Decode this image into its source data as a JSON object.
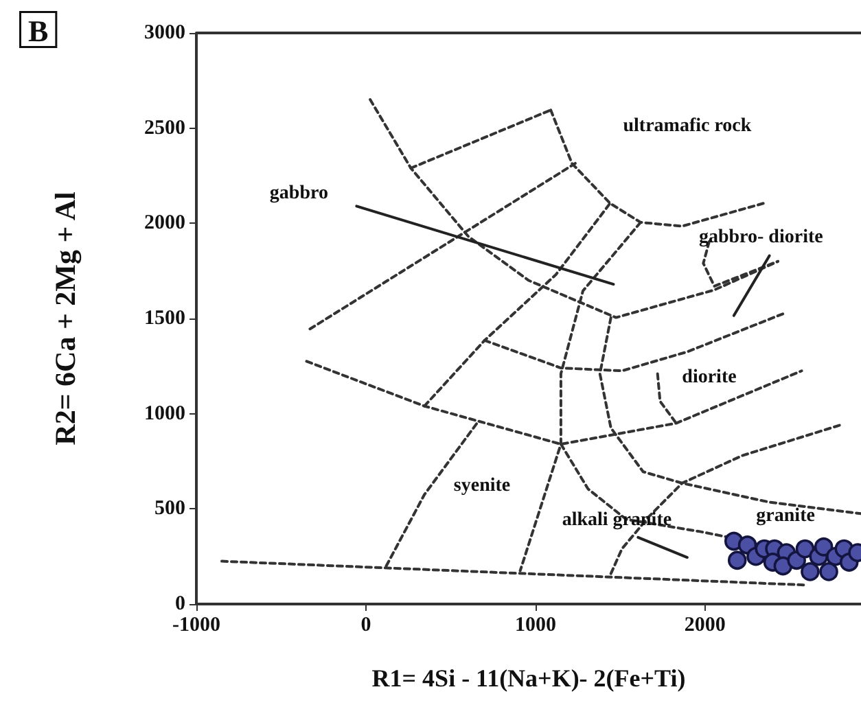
{
  "chart_data": {
    "type": "scatter",
    "xlabel": "R1= 4Si - 11(Na+K)- 2(Fe+Ti)",
    "ylabel": "R2= 6Ca + 2Mg + Al",
    "xlim": [
      -1000,
      2920
    ],
    "xticks": [
      -1000,
      0,
      1000,
      2000
    ],
    "ylim": [
      0,
      3000
    ],
    "yticks": [
      0,
      500,
      1000,
      1500,
      2000,
      2500,
      3000
    ],
    "marker": "circle",
    "annotations": [
      "B",
      "ultramafic rock",
      "gabbro",
      "gabbro- diorite",
      "diorite",
      "syenite",
      "alkali granite",
      "granite"
    ],
    "series": [
      {
        "type": "line",
        "line_style": "dashed",
        "marker": "none",
        "color": "#333333",
        "x": [
          -850,
          2590
        ],
        "values": [
          225,
          100
        ]
      },
      {
        "type": "line",
        "line_style": "dashed",
        "marker": "none",
        "color": "#333333",
        "x": [
          -350,
          345,
          1150,
          1830,
          2570
        ],
        "values": [
          1275,
          1040,
          840,
          950,
          1225
        ]
      },
      {
        "type": "line",
        "line_style": "dashed",
        "marker": "none",
        "color": "#333333",
        "x": [
          25,
          265,
          605,
          960,
          1475,
          2055,
          2430
        ],
        "values": [
          2650,
          2290,
          1930,
          1700,
          1505,
          1650,
          1800
        ]
      },
      {
        "type": "line",
        "line_style": "dashed",
        "marker": "none",
        "color": "#333333",
        "x": [
          -330,
          1235
        ],
        "values": [
          1445,
          2315
        ]
      },
      {
        "type": "line",
        "line_style": "dashed",
        "marker": "none",
        "color": "#333333",
        "x": [
          265,
          1090
        ],
        "values": [
          2290,
          2595
        ]
      },
      {
        "type": "line",
        "line_style": "dashed",
        "marker": "none",
        "color": "#333333",
        "x": [
          1090,
          1215,
          1440,
          1620,
          1865,
          2345
        ],
        "values": [
          2595,
          2315,
          2105,
          2005,
          1985,
          2105
        ]
      },
      {
        "type": "line",
        "line_style": "dashed",
        "marker": "none",
        "color": "#333333",
        "x": [
          345,
          700,
          1120,
          1440
        ],
        "values": [
          1040,
          1385,
          1730,
          2105
        ]
      },
      {
        "type": "line",
        "line_style": "dashed",
        "marker": "none",
        "color": "#333333",
        "x": [
          700,
          1150,
          1510,
          1895,
          2475
        ],
        "values": [
          1385,
          1240,
          1225,
          1325,
          1530
        ]
      },
      {
        "type": "line",
        "line_style": "dashed",
        "marker": "none",
        "color": "#333333",
        "x": [
          1620,
          1280,
          1150,
          1150,
          910
        ],
        "values": [
          2005,
          1645,
          1210,
          840,
          175
        ]
      },
      {
        "type": "line",
        "line_style": "dashed",
        "marker": "none",
        "color": "#333333",
        "x": [
          1150,
          1310,
          1535,
          1975,
          2170
        ],
        "values": [
          840,
          605,
          445,
          380,
          345
        ]
      },
      {
        "type": "line",
        "line_style": "dashed",
        "marker": "none",
        "color": "#333333",
        "x": [
          1445,
          1380,
          1445,
          1635,
          1865,
          2380,
          2920
        ],
        "values": [
          1505,
          1210,
          925,
          695,
          635,
          535,
          475
        ]
      },
      {
        "type": "line",
        "line_style": "dashed",
        "marker": "none",
        "color": "#333333",
        "x": [
          1445,
          1510,
          1670,
          1865,
          2220,
          2815
        ],
        "values": [
          160,
          290,
          460,
          635,
          780,
          945
        ]
      },
      {
        "type": "line",
        "line_style": "dashed",
        "marker": "none",
        "color": "#333333",
        "x": [
          1720,
          1735,
          1830
        ],
        "values": [
          1210,
          1065,
          950
        ]
      },
      {
        "type": "line",
        "line_style": "dashed",
        "marker": "none",
        "color": "#333333",
        "x": [
          2025,
          1990,
          2055,
          2430
        ],
        "values": [
          1905,
          1790,
          1670,
          1800
        ]
      },
      {
        "type": "line",
        "line_style": "dashed",
        "marker": "none",
        "color": "#333333",
        "x": [
          120,
          345,
          655
        ],
        "values": [
          200,
          575,
          950
        ]
      },
      {
        "type": "line",
        "line_style": "solid",
        "marker": "none",
        "color": "#222222",
        "x": [
          -55,
          1460
        ],
        "values": [
          2090,
          1680
        ]
      },
      {
        "type": "line",
        "line_style": "solid",
        "marker": "none",
        "color": "#222222",
        "x": [
          2170,
          2380
        ],
        "values": [
          1515,
          1830
        ]
      },
      {
        "type": "line",
        "line_style": "solid",
        "marker": "none",
        "color": "#222222",
        "x": [
          1605,
          1895
        ],
        "values": [
          350,
          245
        ]
      },
      {
        "color": "#4b50a5",
        "x": [
          2170,
          2190,
          2250,
          2300,
          2350,
          2410,
          2400,
          2480,
          2460,
          2540,
          2590,
          2620,
          2670,
          2700,
          2730,
          2770,
          2820,
          2850,
          2900
        ],
        "values": [
          330,
          230,
          310,
          250,
          290,
          290,
          220,
          270,
          200,
          230,
          290,
          170,
          250,
          300,
          170,
          250,
          290,
          220,
          270
        ]
      }
    ]
  }
}
